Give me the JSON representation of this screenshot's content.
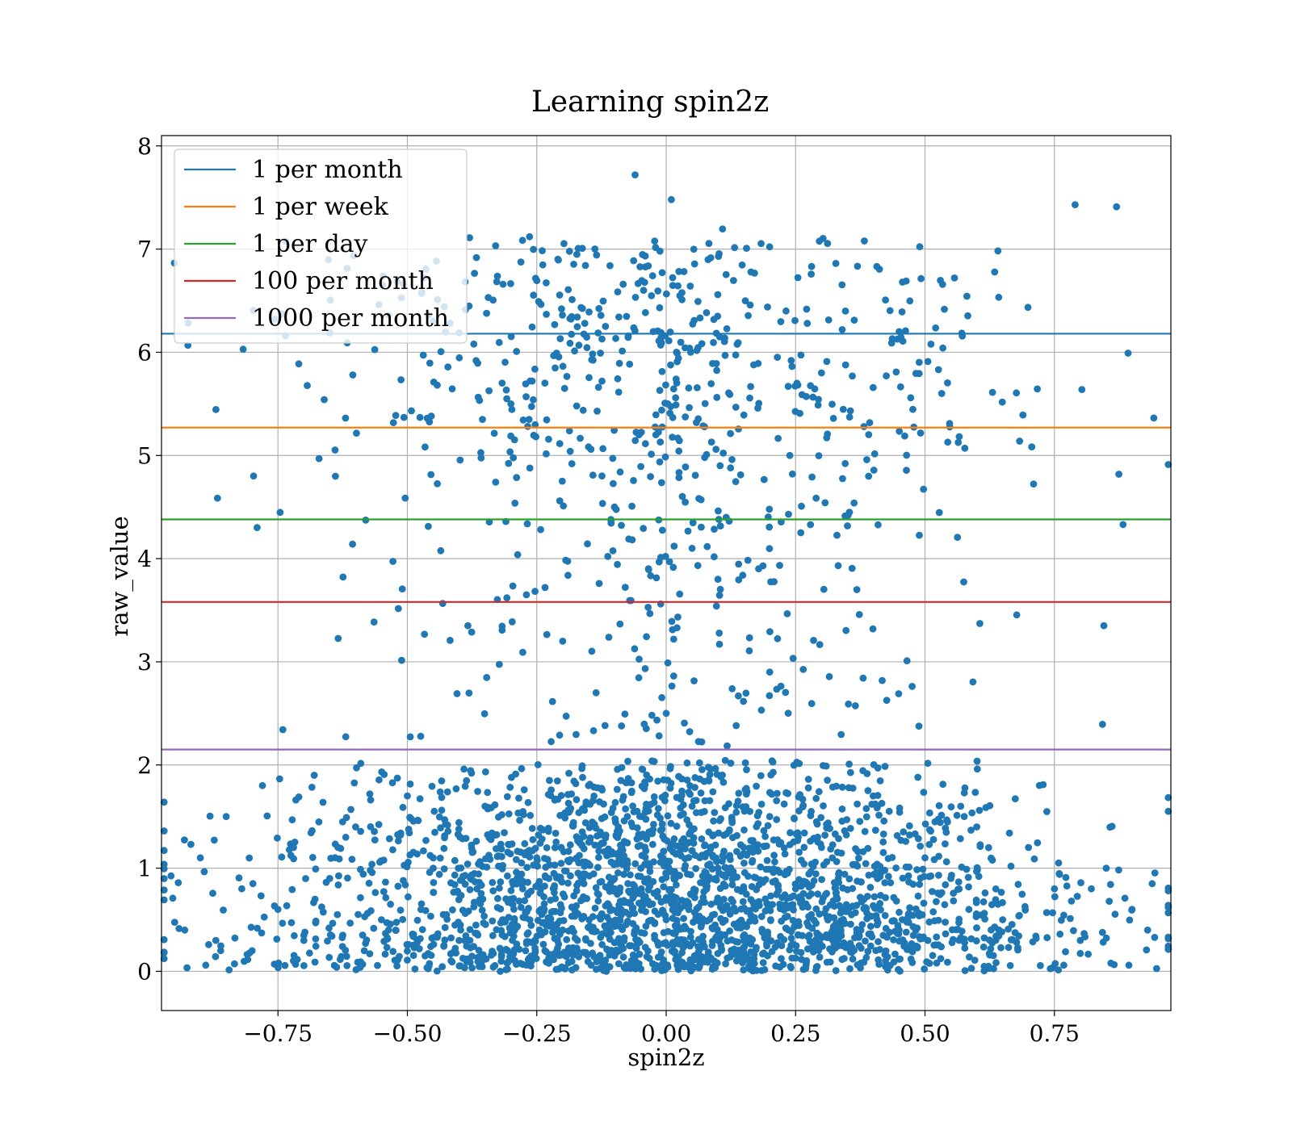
{
  "chart_data": {
    "type": "scatter",
    "title": "Learning spin2z",
    "xlabel": "spin2z",
    "ylabel": "raw_value",
    "xlim": [
      -0.975,
      0.975
    ],
    "ylim": [
      -0.38,
      8.1
    ],
    "xticks": [
      -0.75,
      -0.5,
      -0.25,
      0.0,
      0.25,
      0.5,
      0.75
    ],
    "xtick_labels": [
      "−0.75",
      "−0.50",
      "−0.25",
      "0.00",
      "0.25",
      "0.50",
      "0.75"
    ],
    "yticks": [
      0,
      1,
      2,
      3,
      4,
      5,
      6,
      7,
      8
    ],
    "ytick_labels": [
      "0",
      "1",
      "2",
      "3",
      "4",
      "5",
      "6",
      "7",
      "8"
    ],
    "grid": true,
    "legend_position": "upper-left",
    "scatter_color": "#1f77b4",
    "series": [
      {
        "kind": "scatter",
        "name": "",
        "color": "#1f77b4",
        "x": [
          -0.93,
          -0.9,
          -0.87,
          -0.85,
          -0.82,
          -0.8,
          -0.78,
          -0.75,
          -0.72,
          -0.7,
          -0.68,
          -0.65,
          -0.6,
          -0.55,
          -0.5,
          -0.45,
          -0.4,
          -0.35,
          -0.3,
          -0.25,
          -0.2,
          -0.15,
          -0.1,
          -0.05,
          0.0,
          0.05,
          0.1,
          0.15,
          0.2,
          0.25,
          0.3,
          0.35,
          0.4,
          0.45,
          0.5,
          0.55,
          0.6,
          0.65,
          0.7,
          0.75,
          0.8,
          0.85,
          0.9,
          0.93,
          -0.06,
          0.01,
          0.79,
          0.87,
          -0.45,
          0.45,
          -0.3,
          0.3,
          -0.1,
          0.1,
          0.2,
          -0.2,
          0.0,
          0.02,
          -0.02,
          0.05
        ],
        "y": [
          0.4,
          1.1,
          0.3,
          1.5,
          0.8,
          0.2,
          1.8,
          0.6,
          1.2,
          0.3,
          1.9,
          0.9,
          1.4,
          0.5,
          1.7,
          1.0,
          0.3,
          1.6,
          0.7,
          1.1,
          0.4,
          1.8,
          0.9,
          1.3,
          0.5,
          1.6,
          1.0,
          0.3,
          1.5,
          0.8,
          1.2,
          0.6,
          1.7,
          0.4,
          1.1,
          0.9,
          1.4,
          0.5,
          1.2,
          0.8,
          0.3,
          1.0,
          0.6,
          0.4,
          7.72,
          7.48,
          7.43,
          7.41,
          6.3,
          6.2,
          5.5,
          5.8,
          4.5,
          3.8,
          2.9,
          3.2,
          2.5,
          6.0,
          5.2,
          4.1
        ]
      }
    ],
    "lines": [
      {
        "name": "1 per month",
        "y": 6.18,
        "color": "#1f77b4"
      },
      {
        "name": "1 per week",
        "y": 5.27,
        "color": "#ff7f0e"
      },
      {
        "name": "1 per day",
        "y": 4.38,
        "color": "#2ca02c"
      },
      {
        "name": "100 per month",
        "y": 3.58,
        "color": "#d62728"
      },
      {
        "name": "1000 per month",
        "y": 2.15,
        "color": "#9467bd"
      }
    ]
  }
}
